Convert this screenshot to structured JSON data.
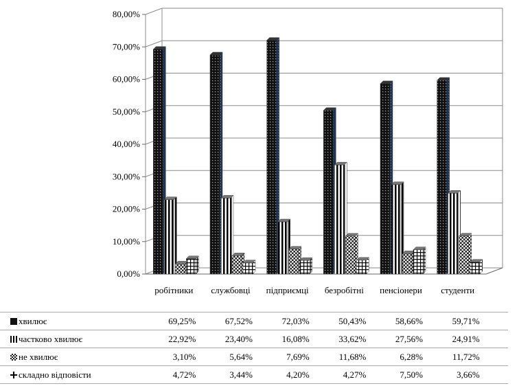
{
  "chart_data": {
    "type": "bar",
    "categories": [
      "робітники",
      "службовці",
      "підприємці",
      "безробітні",
      "пенсіонери",
      "студенти"
    ],
    "ylim": [
      0,
      80
    ],
    "yticks": [
      "0,00%",
      "10,00%",
      "20,00%",
      "30,00%",
      "40,00%",
      "50,00%",
      "60,00%",
      "70,00%",
      "80,00%"
    ],
    "grid": true,
    "legend_position": "table-below",
    "series": [
      {
        "name": "хвилює",
        "values": [
          69.25,
          67.52,
          72.03,
          50.43,
          58.66,
          59.71
        ],
        "labels": [
          "69,25%",
          "67,52%",
          "72,03%",
          "50,43%",
          "58,66%",
          "59,71%"
        ],
        "pattern": "dots-dark"
      },
      {
        "name": "частково хвилює",
        "values": [
          22.92,
          23.4,
          16.08,
          33.62,
          27.56,
          24.91
        ],
        "labels": [
          "22,92%",
          "23,40%",
          "16,08%",
          "33,62%",
          "27,56%",
          "24,91%"
        ],
        "pattern": "vertical-stripes"
      },
      {
        "name": "не хвилює",
        "values": [
          3.1,
          5.64,
          7.69,
          11.68,
          6.28,
          11.72
        ],
        "labels": [
          "3,10%",
          "5,64%",
          "7,69%",
          "11,68%",
          "6,28%",
          "11,72%"
        ],
        "pattern": "checker"
      },
      {
        "name": "складно відповісти",
        "values": [
          4.72,
          3.44,
          4.2,
          4.27,
          7.5,
          3.66
        ],
        "labels": [
          "4,72%",
          "3,44%",
          "4,20%",
          "4,27%",
          "7,50%",
          "3,66%"
        ],
        "pattern": "grid-plus"
      }
    ]
  }
}
